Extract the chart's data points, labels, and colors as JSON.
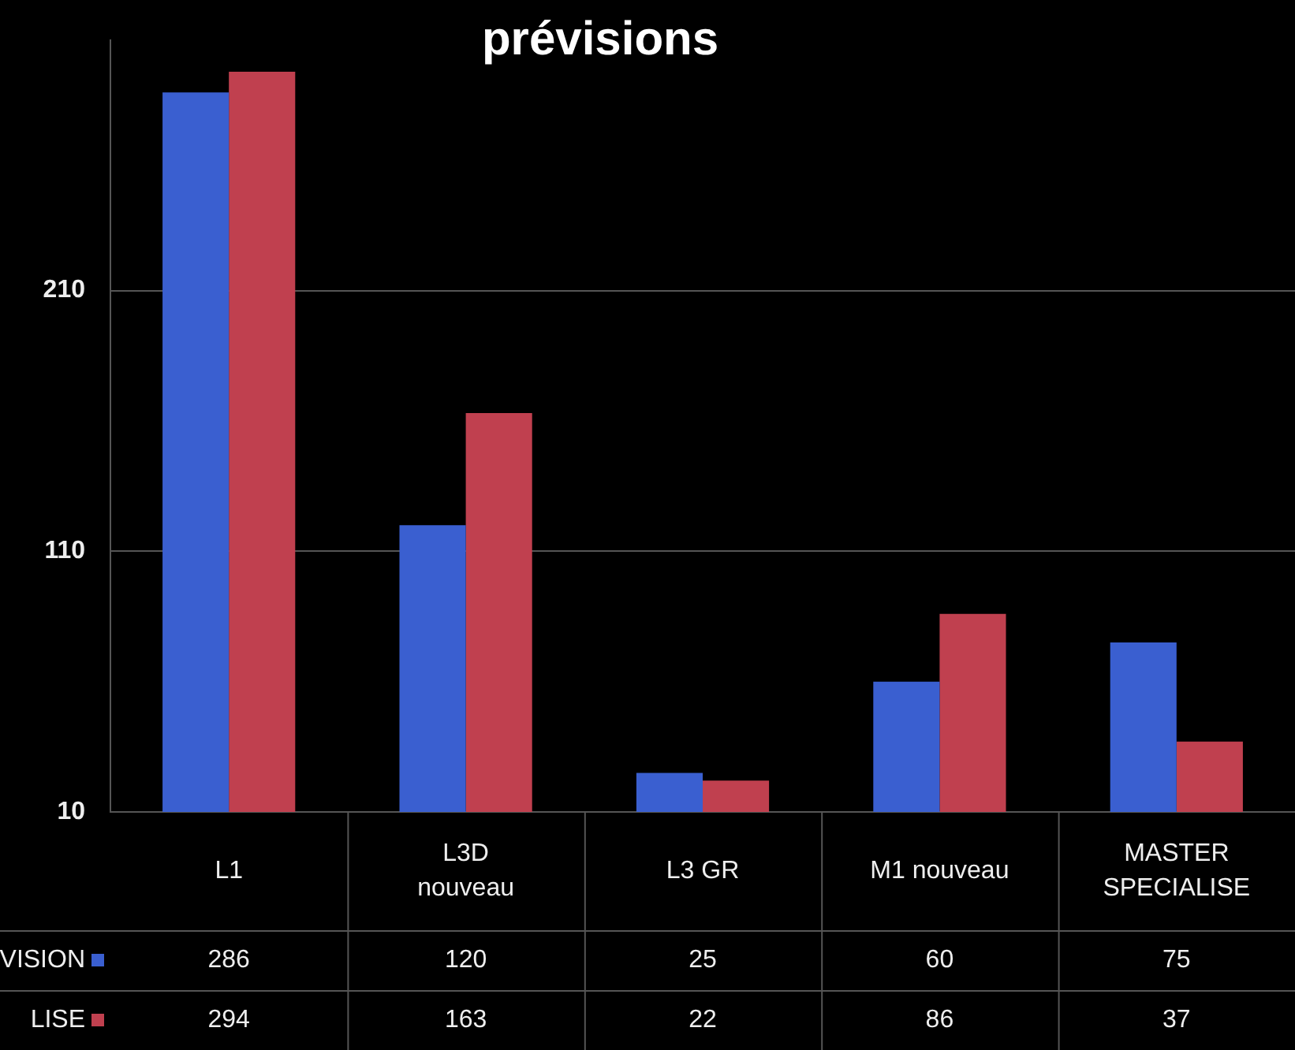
{
  "chart_data": {
    "type": "bar",
    "title": "prévisions",
    "categories": [
      "L1",
      "L3D\nnouveau",
      "L3 GR",
      "M1 nouveau",
      "MASTER\nSPECIALISE"
    ],
    "series": [
      {
        "name": "VISION",
        "color": "#3a5fd0",
        "values": [
          286,
          120,
          25,
          60,
          75
        ]
      },
      {
        "name": "LISE",
        "color": "#c0404f",
        "values": [
          294,
          163,
          22,
          86,
          37
        ]
      }
    ],
    "ylim": [
      10,
      306
    ],
    "yticks": [
      10,
      110,
      210
    ],
    "grid": "y",
    "data_labels": true,
    "legend": "left"
  }
}
